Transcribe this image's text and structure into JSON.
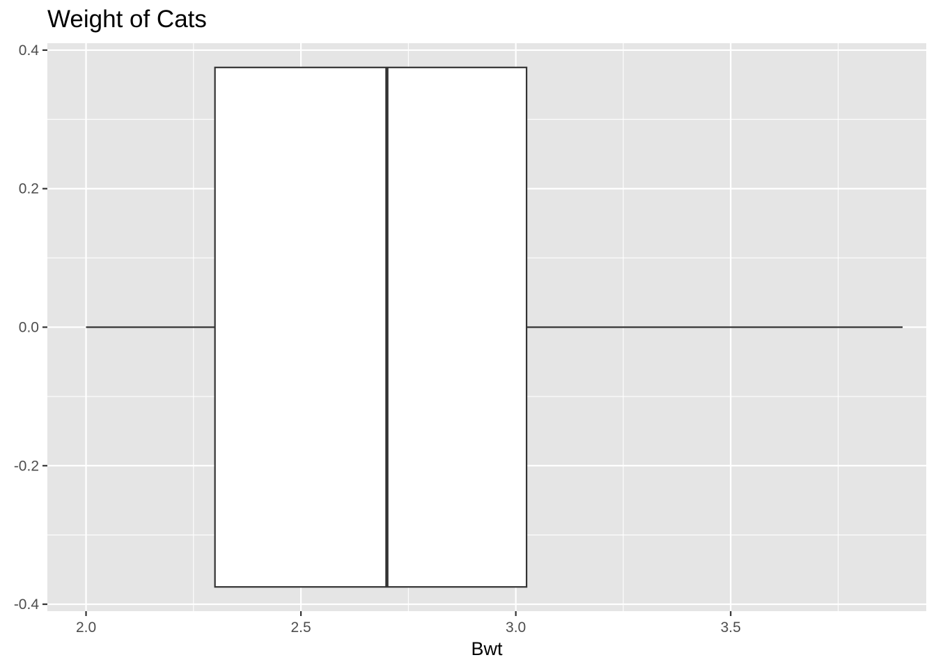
{
  "chart_data": {
    "type": "boxplot",
    "title": "Weight of Cats",
    "xlabel": "Bwt",
    "ylabel": "",
    "orientation": "horizontal",
    "xlim": [
      1.91,
      3.955
    ],
    "ylim": [
      -0.41,
      0.41
    ],
    "x_ticks": [
      2.0,
      2.5,
      3.0,
      3.5
    ],
    "x_tick_labels": [
      "2.0",
      "2.5",
      "3.0",
      "3.5"
    ],
    "y_ticks": [
      -0.4,
      -0.2,
      0.0,
      0.2,
      0.4
    ],
    "y_tick_labels": [
      "-0.4",
      "-0.2",
      "0.0",
      "0.2",
      "0.4"
    ],
    "box": {
      "min": 2.0,
      "q1": 2.3,
      "median": 2.7,
      "q3": 3.025,
      "max": 3.9,
      "y_center": 0.0,
      "y_halfwidth": 0.375
    },
    "grid": true,
    "colors": {
      "panel_background": "#e5e5e5",
      "grid_major": "#ffffff",
      "box_fill": "#ffffff",
      "box_stroke": "#333333",
      "tick_label": "#4d4d4d"
    }
  }
}
